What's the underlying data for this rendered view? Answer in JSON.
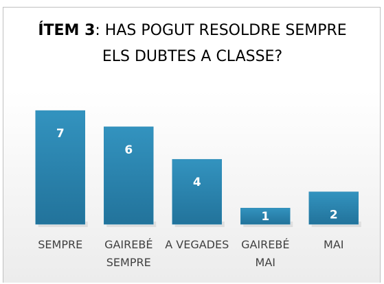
{
  "chart_data": {
    "type": "bar",
    "title": {
      "bold": "ÍTEM 3",
      "text": ": HAS POGUT RESOLDRE SEMPRE ELS DUBTES A CLASSE?"
    },
    "categories": [
      "SEMPRE",
      "GAIREBÉ SEMPRE",
      "A VEGADES",
      "GAIREBÉ MAI",
      "MAI"
    ],
    "values": [
      7,
      6,
      4,
      1,
      2
    ],
    "color": "#2e8ab4"
  }
}
